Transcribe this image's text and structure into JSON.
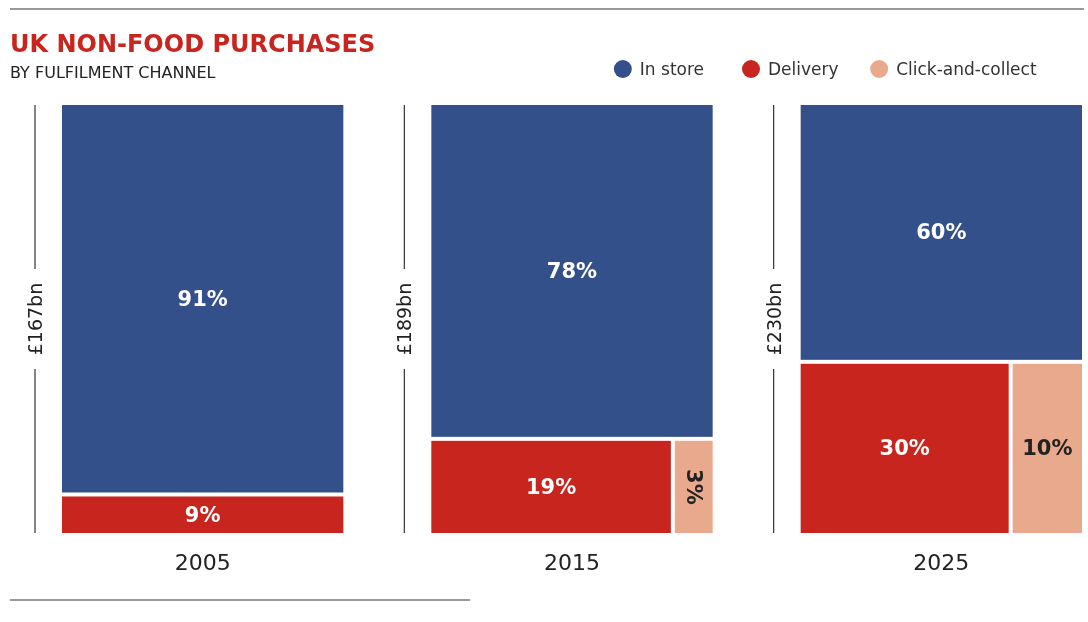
{
  "chart_data": {
    "type": "other",
    "title": "UK NON-FOOD PURCHASES",
    "subtitle": "BY FULFILMENT CHANNEL",
    "categories": [
      "2005",
      "2015",
      "2025"
    ],
    "totals": [
      "£167bn",
      "£189bn",
      "£230bn"
    ],
    "legend": "top right",
    "series": [
      {
        "name": "In store",
        "color": "#34508a",
        "values": [
          91,
          78,
          60
        ],
        "value_labels": [
          "91%",
          "78%",
          "60%"
        ]
      },
      {
        "name": "Delivery",
        "color": "#c8251f",
        "values": [
          9,
          19,
          30
        ],
        "value_labels": [
          "9%",
          "19%",
          "30%"
        ]
      },
      {
        "name": "Click-and-collect",
        "color": "#e8a98c",
        "values": [
          null,
          3,
          10
        ],
        "value_labels": [
          null,
          "3%",
          "10%"
        ]
      }
    ]
  }
}
